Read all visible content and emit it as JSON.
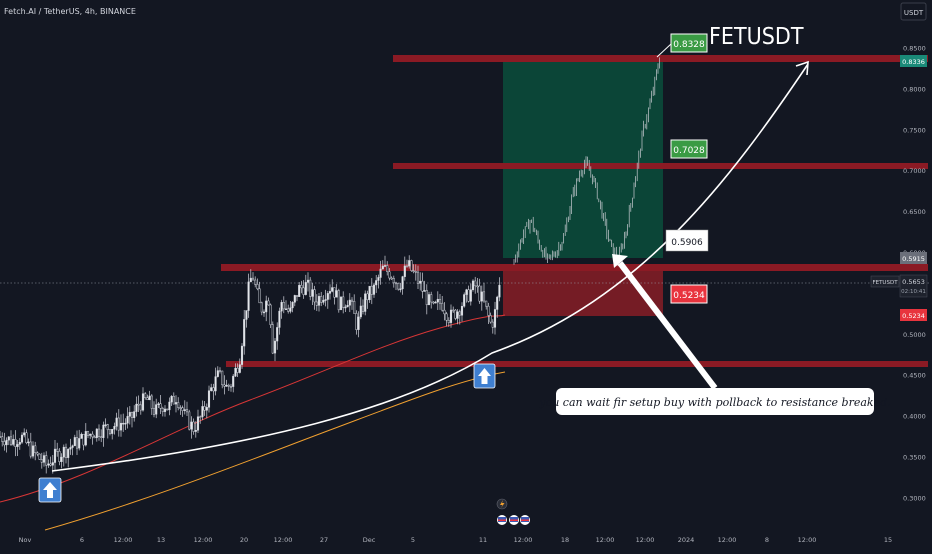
{
  "header": {
    "symbol_line": "Fetch.AI / TetherUS, 4h, BINANCE",
    "currency_button": "USDT"
  },
  "annotations": {
    "title": "FETUSDT",
    "note": "you can  wait fir setup buy with pollback to resistance breaked.",
    "tp2_label": "0.8328",
    "tp1_label": "0.7028",
    "entry_label": "0.5906",
    "stop_label": "0.5234"
  },
  "price_tags": {
    "tp_tag": "0.8336",
    "entry_tag": "0.5915",
    "current_name": "FETUSDT",
    "current_price": "0.5653",
    "countdown": "02:10:41",
    "stop_tag": "0.5234"
  },
  "colors": {
    "background": "#131722",
    "resistance_zone": "#8b1a24",
    "target_zone": "#0b4a39",
    "stop_zone": "#7a1c26",
    "curve": "#ffffff",
    "ma_red": "#d73636",
    "ma_orange": "#f0a030",
    "arrow_icon": "#3f7fd0",
    "label_green": "#3a9b44",
    "label_red": "#e8343e"
  },
  "chart_data": {
    "type": "candlestick",
    "title": "FETUSDT",
    "y_ticks": [
      "0.8500",
      "0.8000",
      "0.7500",
      "0.7000",
      "0.6500",
      "0.6000",
      "0.5500",
      "0.5000",
      "0.4500",
      "0.4000",
      "0.3500",
      "0.3000"
    ],
    "x_ticks": [
      "Nov",
      "6",
      "12:00",
      "13",
      "12:00",
      "20",
      "12:00",
      "27",
      "Dec",
      "5",
      "11",
      "12:00",
      "18",
      "12:00",
      "12:00",
      "2024",
      "12:00",
      "8",
      "12:00",
      "15"
    ],
    "ylim": [
      0.28,
      0.87
    ],
    "key_levels": [
      0.8328,
      0.7028,
      0.5906,
      0.5234,
      0.46
    ],
    "current_price": 0.5653,
    "path_points": [
      {
        "x": 0,
        "y": 0.375
      },
      {
        "x": 3,
        "y": 0.37
      },
      {
        "x": 5,
        "y": 0.375
      },
      {
        "x": 8,
        "y": 0.355
      },
      {
        "x": 11,
        "y": 0.34
      },
      {
        "x": 13,
        "y": 0.35
      },
      {
        "x": 16,
        "y": 0.36
      },
      {
        "x": 19,
        "y": 0.37
      },
      {
        "x": 22,
        "y": 0.38
      },
      {
        "x": 25,
        "y": 0.385
      },
      {
        "x": 28,
        "y": 0.39
      },
      {
        "x": 31,
        "y": 0.395
      },
      {
        "x": 33,
        "y": 0.415
      },
      {
        "x": 35,
        "y": 0.42
      },
      {
        "x": 37,
        "y": 0.405
      },
      {
        "x": 39,
        "y": 0.415
      },
      {
        "x": 40,
        "y": 0.41
      },
      {
        "x": 42,
        "y": 0.425
      },
      {
        "x": 44,
        "y": 0.4
      },
      {
        "x": 46,
        "y": 0.385
      },
      {
        "x": 48,
        "y": 0.4
      },
      {
        "x": 50,
        "y": 0.43
      },
      {
        "x": 52,
        "y": 0.45
      },
      {
        "x": 54,
        "y": 0.435
      },
      {
        "x": 55,
        "y": 0.44
      },
      {
        "x": 57,
        "y": 0.47
      },
      {
        "x": 59,
        "y": 0.55
      },
      {
        "x": 60,
        "y": 0.575
      },
      {
        "x": 62,
        "y": 0.53
      },
      {
        "x": 64,
        "y": 0.545
      },
      {
        "x": 65,
        "y": 0.48
      },
      {
        "x": 67,
        "y": 0.54
      },
      {
        "x": 69,
        "y": 0.525
      },
      {
        "x": 71,
        "y": 0.555
      },
      {
        "x": 73,
        "y": 0.56
      },
      {
        "x": 75,
        "y": 0.54
      },
      {
        "x": 77,
        "y": 0.55
      },
      {
        "x": 79,
        "y": 0.56
      },
      {
        "x": 81,
        "y": 0.535
      },
      {
        "x": 83,
        "y": 0.545
      },
      {
        "x": 85,
        "y": 0.51
      },
      {
        "x": 87,
        "y": 0.545
      },
      {
        "x": 89,
        "y": 0.555
      },
      {
        "x": 91,
        "y": 0.58
      },
      {
        "x": 93,
        "y": 0.575
      },
      {
        "x": 95,
        "y": 0.56
      },
      {
        "x": 97,
        "y": 0.585
      },
      {
        "x": 99,
        "y": 0.57
      },
      {
        "x": 101,
        "y": 0.55
      },
      {
        "x": 103,
        "y": 0.53
      },
      {
        "x": 105,
        "y": 0.54
      },
      {
        "x": 107,
        "y": 0.52
      },
      {
        "x": 109,
        "y": 0.53
      },
      {
        "x": 111,
        "y": 0.545
      },
      {
        "x": 113,
        "y": 0.56
      },
      {
        "x": 115,
        "y": 0.54
      },
      {
        "x": 117,
        "y": 0.51
      },
      {
        "x": 118,
        "y": 0.53
      },
      {
        "x": 119,
        "y": 0.565
      }
    ],
    "projection_points": [
      {
        "x": 0,
        "y": 0.59
      },
      {
        "x": 2,
        "y": 0.62
      },
      {
        "x": 4,
        "y": 0.64
      },
      {
        "x": 6,
        "y": 0.61
      },
      {
        "x": 8,
        "y": 0.59
      },
      {
        "x": 10,
        "y": 0.6
      },
      {
        "x": 12,
        "y": 0.62
      },
      {
        "x": 14,
        "y": 0.67
      },
      {
        "x": 16,
        "y": 0.7
      },
      {
        "x": 17,
        "y": 0.71
      },
      {
        "x": 19,
        "y": 0.69
      },
      {
        "x": 21,
        "y": 0.65
      },
      {
        "x": 23,
        "y": 0.61
      },
      {
        "x": 25,
        "y": 0.59
      },
      {
        "x": 27,
        "y": 0.63
      },
      {
        "x": 29,
        "y": 0.69
      },
      {
        "x": 31,
        "y": 0.75
      },
      {
        "x": 33,
        "y": 0.79
      },
      {
        "x": 35,
        "y": 0.84
      }
    ]
  }
}
